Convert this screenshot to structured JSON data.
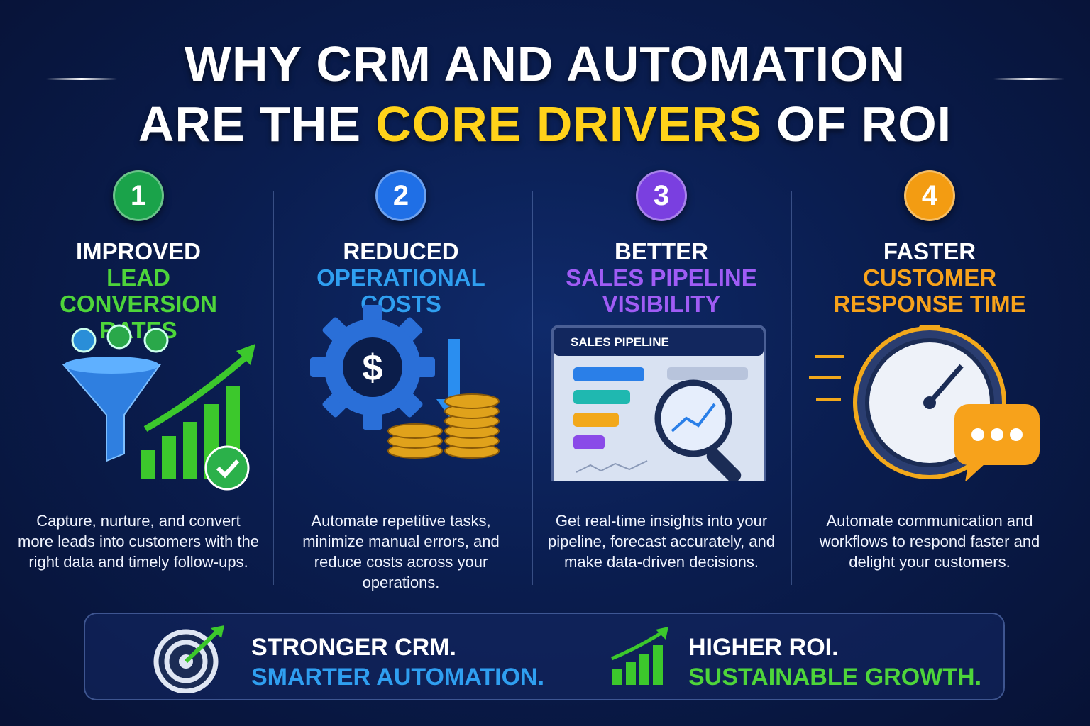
{
  "header": {
    "title_line1": "WHY CRM AND AUTOMATION",
    "title_line2": [
      "ARE THE",
      "CORE DRIVERS",
      "OF ROI"
    ]
  },
  "columns": [
    {
      "number": "1",
      "heading": "IMPROVED",
      "highlight": [
        "LEAD",
        "CONVERSION",
        "RATES"
      ],
      "description": "Capture, nurture, and convert more leads into customers with the right data and timely follow-ups."
    },
    {
      "number": "2",
      "heading": "REDUCED",
      "highlight": [
        "OPERATIONAL",
        "COSTS"
      ],
      "description": "Automate repetitive tasks, minimize manual errors, and reduce costs across your operations."
    },
    {
      "number": "3",
      "heading": "BETTER",
      "highlight": [
        "SALES PIPELINE",
        "VISIBILITY"
      ],
      "illustration_label": "SALES PIPELINE",
      "description": "Get real-time insights into your pipeline, forecast accurately, and make data-driven decisions."
    },
    {
      "number": "4",
      "heading": "FASTER",
      "highlight": [
        "CUSTOMER",
        "RESPONSE TIME"
      ],
      "description": "Automate communication and workflows to respond faster and delight your customers."
    }
  ],
  "footer": [
    {
      "line1": "STRONGER CRM.",
      "line2": "SMARTER AUTOMATION."
    },
    {
      "line1": "HIGHER ROI.",
      "line2": "SUSTAINABLE GROWTH."
    }
  ]
}
